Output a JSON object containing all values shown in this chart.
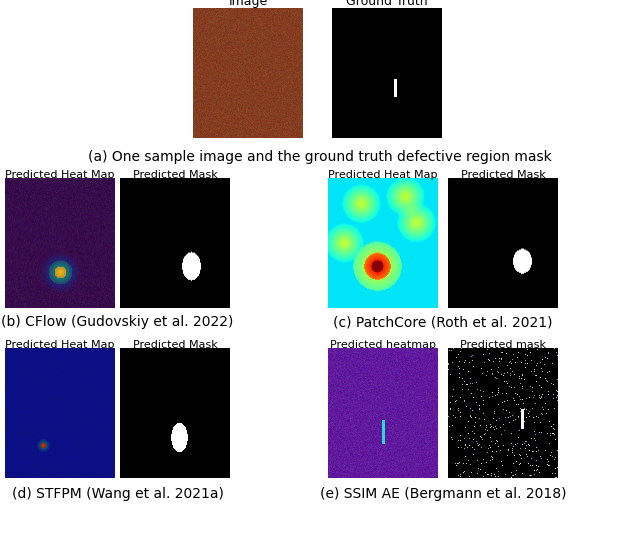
{
  "title_a": "(a) One sample image and the ground truth defective region mask",
  "title_b": "(b) CFlow (Gudovskiy et al. 2022)",
  "title_c": "(c) PatchCore (Roth et al. 2021)",
  "title_d": "(d) STFPM (Wang et al. 2021a)",
  "title_e": "(e) SSIM AE (Bergmann et al. 2018)",
  "label_image": "Image",
  "label_gt": "Ground Truth",
  "label_heatmap_b": "Predicted Heat Map",
  "label_mask_b": "Predicted Mask",
  "label_heatmap_c": "Predicted Heat Map",
  "label_mask_c": "Predicted Mask",
  "label_heatmap_d": "Predicted Heat Map",
  "label_mask_d": "Predicted Mask",
  "label_heatmap_e": "Predicted heatmap",
  "label_mask_e": "Predicted mask",
  "background_color": "#ffffff",
  "text_color": "#000000",
  "fontsize_caption": 10,
  "fontsize_label": 8
}
